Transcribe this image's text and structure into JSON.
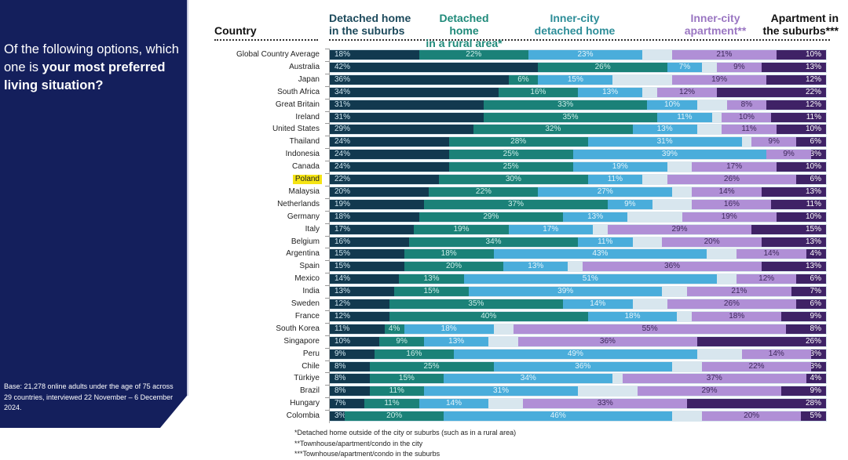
{
  "panel": {
    "question_plain": "Of the following options, which one is ",
    "question_bold": "your most preferred living situation?",
    "base_note": "Base: 21,278 online adults under the age of 75 across 29 countries, interviewed 22 November – 6 December 2024."
  },
  "colors": {
    "panel_bg": "#141f5c",
    "detached_suburbs": "#12394f",
    "detached_rural": "#1b8178",
    "innercity_detached": "#4aaddb",
    "innercity_apartment": "#b08fd6",
    "apartment_suburbs": "#3f2266",
    "highlight": "#f5e414"
  },
  "footnotes": [
    "*Detached home outside of the city or suburbs (such as in a rural area)",
    "**Townhouse/apartment/condo in the city",
    "***Townhouse/apartment/condo in the suburbs"
  ],
  "chart_data": {
    "type": "bar",
    "orientation": "horizontal",
    "stacked": true,
    "title": "Of the following options, which one is your most preferred living situation?",
    "category_header": "Country",
    "highlighted_category": "Poland",
    "xlim": [
      0,
      100
    ],
    "unit": "%",
    "legend_placement": "top",
    "categories": [
      "Global Country Average",
      "Australia",
      "Japan",
      "South Africa",
      "Great Britain",
      "Ireland",
      "United States",
      "Thailand",
      "Indonesia",
      "Canada",
      "Poland",
      "Malaysia",
      "Netherlands",
      "Germany",
      "Italy",
      "Belgium",
      "Argentina",
      "Spain",
      "Mexico",
      "India",
      "Sweden",
      "France",
      "South Korea",
      "Singapore",
      "Peru",
      "Chile",
      "Türkiye",
      "Brazil",
      "Hungary",
      "Colombia"
    ],
    "series": [
      {
        "name": "Detached home in the suburbs",
        "header": [
          "Detached home",
          "in the suburbs"
        ],
        "color_key": "detached_suburbs",
        "anchor": "left",
        "values": [
          18,
          42,
          36,
          34,
          31,
          31,
          29,
          24,
          24,
          24,
          22,
          20,
          19,
          18,
          17,
          16,
          15,
          15,
          14,
          13,
          12,
          12,
          11,
          10,
          9,
          8,
          8,
          8,
          7,
          3
        ]
      },
      {
        "name": "Detached home in a rural area*",
        "header": [
          "Detached home",
          "in a rural area*"
        ],
        "color_key": "detached_rural",
        "anchor": "left",
        "values": [
          22,
          26,
          6,
          16,
          33,
          35,
          32,
          28,
          25,
          25,
          30,
          22,
          37,
          29,
          19,
          34,
          18,
          20,
          13,
          15,
          35,
          40,
          4,
          9,
          16,
          25,
          15,
          11,
          11,
          20
        ]
      },
      {
        "name": "Inner-city detached home",
        "header": [
          "Inner-city",
          "detached home"
        ],
        "color_key": "innercity_detached",
        "anchor": "left",
        "values": [
          23,
          7,
          15,
          13,
          10,
          11,
          13,
          31,
          39,
          19,
          11,
          27,
          9,
          13,
          17,
          11,
          43,
          13,
          51,
          39,
          14,
          18,
          18,
          13,
          49,
          36,
          34,
          31,
          14,
          46
        ]
      },
      {
        "name": "Inner-city apartment**",
        "header": [
          "Inner-city",
          "apartment**"
        ],
        "color_key": "innercity_apartment",
        "anchor": "right",
        "values": [
          21,
          9,
          19,
          12,
          8,
          10,
          11,
          9,
          9,
          17,
          26,
          14,
          16,
          19,
          29,
          20,
          14,
          36,
          12,
          21,
          26,
          18,
          55,
          36,
          14,
          22,
          37,
          29,
          33,
          20
        ]
      },
      {
        "name": "Apartment in the suburbs***",
        "header": [
          "Apartment in",
          "the suburbs***"
        ],
        "color_key": "apartment_suburbs",
        "anchor": "right",
        "values": [
          10,
          13,
          12,
          22,
          12,
          11,
          10,
          6,
          3,
          10,
          6,
          13,
          11,
          10,
          15,
          13,
          4,
          13,
          6,
          7,
          6,
          9,
          8,
          26,
          3,
          3,
          4,
          9,
          28,
          5
        ]
      }
    ]
  }
}
